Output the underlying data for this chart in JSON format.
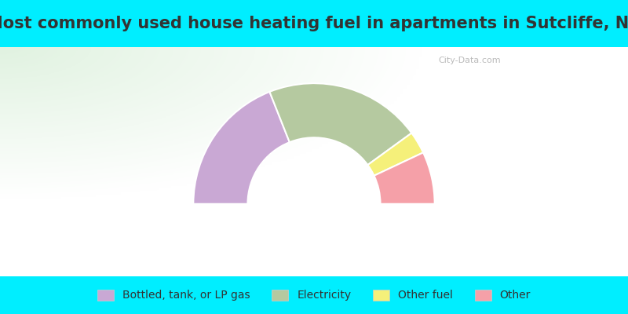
{
  "title": "Most commonly used house heating fuel in apartments in Sutcliffe, NV",
  "segments": [
    {
      "label": "Bottled, tank, or LP gas",
      "value": 38,
      "color": "#c9a8d4"
    },
    {
      "label": "Electricity",
      "value": 42,
      "color": "#b5c9a0"
    },
    {
      "label": "Other fuel",
      "value": 6,
      "color": "#f5f07a"
    },
    {
      "label": "Other",
      "value": 14,
      "color": "#f5a0a8"
    }
  ],
  "background_color": "#00eeff",
  "title_color": "#333333",
  "title_fontsize": 15,
  "legend_fontsize": 10,
  "watermark": "City-Data.com"
}
